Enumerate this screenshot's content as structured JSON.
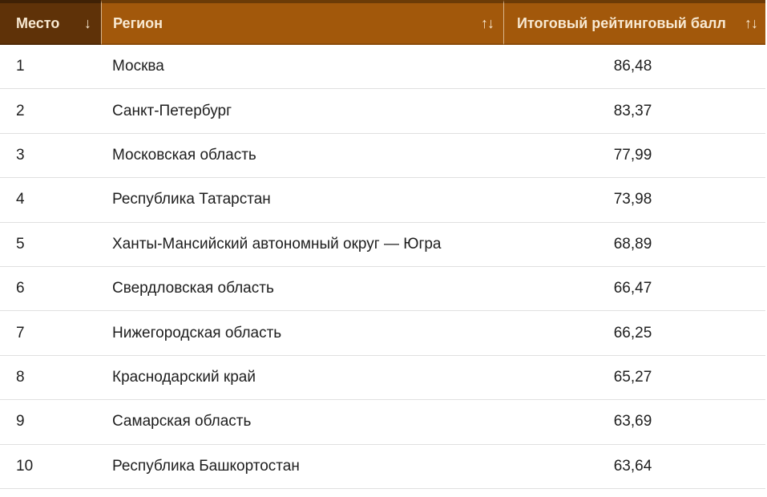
{
  "table": {
    "columns": [
      {
        "label": "Место",
        "sort_icon": "↓",
        "sorted": true
      },
      {
        "label": "Регион",
        "sort_icon": "↑↓",
        "sorted": false
      },
      {
        "label": "Итоговый рейтинговый балл",
        "sort_icon": "↑↓",
        "sorted": false
      }
    ],
    "rows": [
      {
        "place": "1",
        "region": "Москва",
        "score": "86,48"
      },
      {
        "place": "2",
        "region": "Санкт-Петербург",
        "score": "83,37"
      },
      {
        "place": "3",
        "region": "Московская область",
        "score": "77,99"
      },
      {
        "place": "4",
        "region": "Республика Татарстан",
        "score": "73,98"
      },
      {
        "place": "5",
        "region": "Ханты-Мансийский автономный округ — Югра",
        "score": "68,89"
      },
      {
        "place": "6",
        "region": "Свердловская область",
        "score": "66,47"
      },
      {
        "place": "7",
        "region": "Нижегородская область",
        "score": "66,25"
      },
      {
        "place": "8",
        "region": "Краснодарский край",
        "score": "65,27"
      },
      {
        "place": "9",
        "region": "Самарская область",
        "score": "63,69"
      },
      {
        "place": "10",
        "region": "Республика Башкортостан",
        "score": "63,64"
      }
    ]
  },
  "colors": {
    "header_bg": "#a2580b",
    "header_bg_sorted": "#5f3208",
    "header_text": "#f8e9d2",
    "row_text": "#1e1e1e",
    "row_divider": "#e0e0e0"
  }
}
